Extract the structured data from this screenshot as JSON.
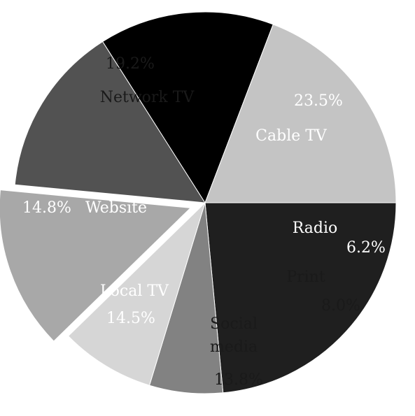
{
  "chart_data": {
    "type": "pie",
    "title": "",
    "slices": [
      {
        "name": "Cable TV",
        "value": 23.5,
        "label": "23.5%",
        "color": "#1f1f1f",
        "text_color": "#ffffff"
      },
      {
        "name": "Radio",
        "value": 6.2,
        "label": "6.2%",
        "color": "#828282",
        "text_color": "#ffffff"
      },
      {
        "name": "Print",
        "value": 8.0,
        "label": "8.0%",
        "color": "#d6d6d6",
        "text_color": "#1a1a1a"
      },
      {
        "name": "Social media",
        "value": 13.8,
        "label": "13.8%",
        "color": "#a8a8a8",
        "text_color": "#1a1a1a",
        "exploded": true
      },
      {
        "name": "Local TV",
        "value": 14.5,
        "label": "14.5%",
        "color": "#525252",
        "text_color": "#ffffff"
      },
      {
        "name": "Website",
        "value": 14.8,
        "label": "14.8%",
        "color": "#000000",
        "text_color": "#ffffff"
      },
      {
        "name": "Network TV",
        "value": 19.2,
        "label": "19.2%",
        "color": "#c4c4c4",
        "text_color": "#1a1a1a"
      }
    ],
    "legend": "none"
  }
}
